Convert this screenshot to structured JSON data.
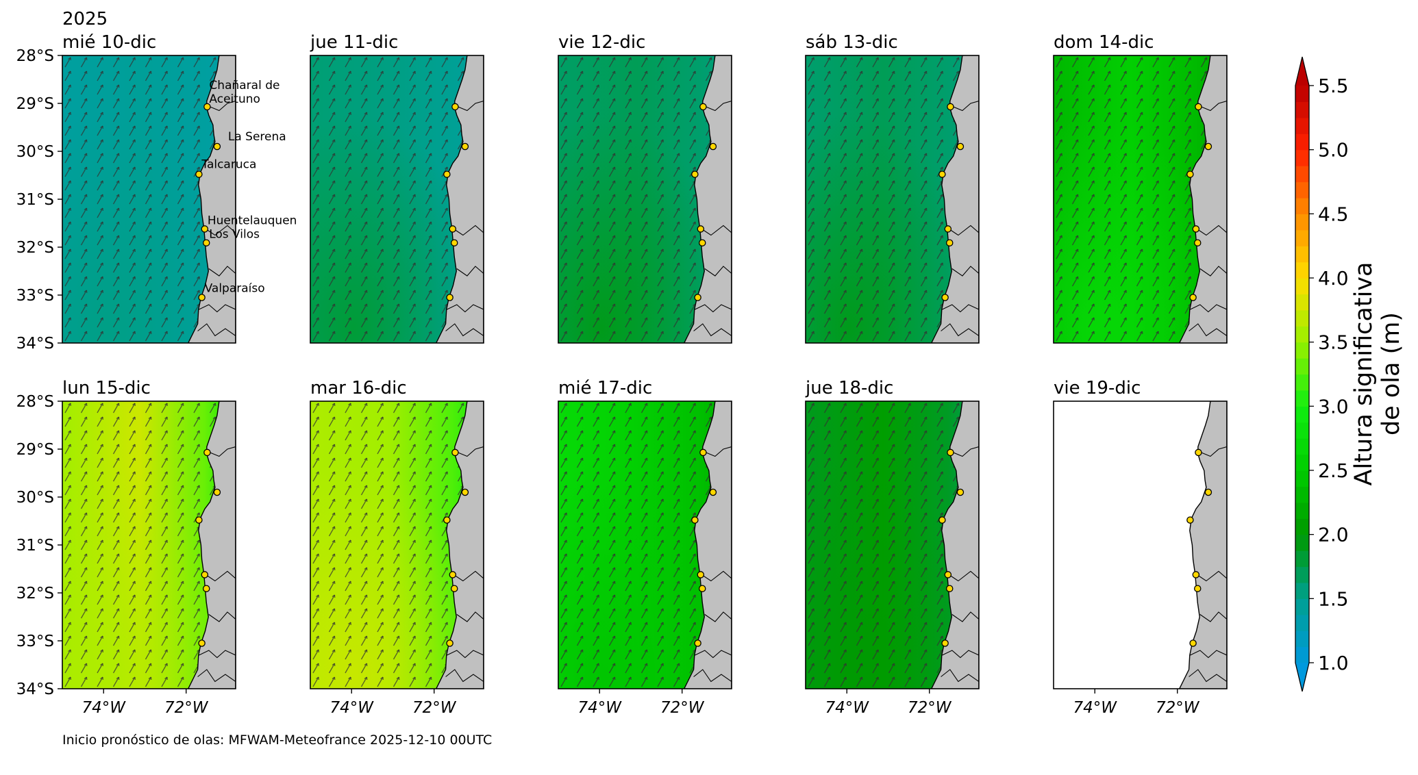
{
  "figure": {
    "year": "2025",
    "footer": "Inicio pronóstico de olas: MFWAM-Meteofrance 2025-12-10 00UTC"
  },
  "colors": {
    "land": "#c0c0c0",
    "station_fill": "#ffd700",
    "station_edge": "#000000",
    "arrow": "#333333"
  },
  "axes": {
    "lat_ticks": [
      "28°S",
      "29°S",
      "30°S",
      "31°S",
      "32°S",
      "33°S",
      "34°S"
    ],
    "lon_ticks": [
      "74°W",
      "72°W"
    ]
  },
  "stations": [
    {
      "name": "Chañaral de Aceituno",
      "lines": [
        "Chañaral de",
        "Aceituno"
      ],
      "lat": -29.07,
      "lon": -71.49
    },
    {
      "name": "La Serena",
      "lines": [
        "La Serena"
      ],
      "lat": -29.9,
      "lon": -71.25
    },
    {
      "name": "Talcaruca",
      "lines": [
        "Talcaruca"
      ],
      "lat": -30.48,
      "lon": -71.69
    },
    {
      "name": "Huentelauquen",
      "lines": [
        "Huentelauquen"
      ],
      "lat": -31.62,
      "lon": -71.55
    },
    {
      "name": "Los Vilos",
      "lines": [
        "Los Vilos"
      ],
      "lat": -31.91,
      "lon": -71.51
    },
    {
      "name": "Valparaíso",
      "lines": [
        "Valparaíso"
      ],
      "lat": -33.05,
      "lon": -71.62
    }
  ],
  "colorbar": {
    "label_line1": "Altura significativa",
    "label_line2": "de ola (m)",
    "min": 1.0,
    "max": 5.5,
    "ticks": [
      "1.0",
      "1.5",
      "2.0",
      "2.5",
      "3.0",
      "3.5",
      "4.0",
      "4.5",
      "5.0",
      "5.5"
    ],
    "stops": [
      {
        "v": 1.0,
        "color": "#0099dd"
      },
      {
        "v": 1.5,
        "color": "#00a090"
      },
      {
        "v": 2.0,
        "color": "#009900"
      },
      {
        "v": 2.5,
        "color": "#00cc00"
      },
      {
        "v": 3.0,
        "color": "#11ee11"
      },
      {
        "v": 3.5,
        "color": "#99f000"
      },
      {
        "v": 4.0,
        "color": "#ffdd00"
      },
      {
        "v": 4.5,
        "color": "#ff8c00"
      },
      {
        "v": 5.0,
        "color": "#ff2200"
      },
      {
        "v": 5.5,
        "color": "#bb0000"
      }
    ],
    "under_color": "#0099dd",
    "over_color": "#bb0000"
  },
  "panels": [
    {
      "title": "mié 10-dic",
      "near": 1.35,
      "mid": 1.45,
      "far": 1.4,
      "swell_south": 1.55,
      "stations_labeled": true
    },
    {
      "title": "jue 11-dic",
      "near": 1.4,
      "mid": 1.55,
      "far": 1.6,
      "swell_south": 1.85,
      "stations_labeled": false
    },
    {
      "title": "vie 12-dic",
      "near": 1.55,
      "mid": 1.7,
      "far": 1.65,
      "swell_south": 1.95,
      "stations_labeled": false
    },
    {
      "title": "sáb 13-dic",
      "near": 1.55,
      "mid": 1.7,
      "far": 1.62,
      "swell_south": 1.95,
      "stations_labeled": false
    },
    {
      "title": "dom 14-dic",
      "near": 2.1,
      "mid": 2.55,
      "far": 2.3,
      "swell_south": 2.7,
      "stations_labeled": false
    },
    {
      "title": "lun 15-dic",
      "near": 2.9,
      "mid": 3.75,
      "far": 3.55,
      "swell_south": 3.6,
      "stations_labeled": false
    },
    {
      "title": "mar 16-dic",
      "near": 2.9,
      "mid": 3.55,
      "far": 3.6,
      "swell_south": 3.75,
      "stations_labeled": false
    },
    {
      "title": "mié 17-dic",
      "near": 2.2,
      "mid": 2.55,
      "far": 2.7,
      "swell_south": 2.4,
      "stations_labeled": false
    },
    {
      "title": "jue 18-dic",
      "near": 1.7,
      "mid": 2.05,
      "far": 1.9,
      "swell_south": 2.0,
      "stations_labeled": false
    },
    {
      "title": "vie 19-dic",
      "near": null,
      "mid": null,
      "far": null,
      "swell_south": null,
      "stations_labeled": false
    }
  ]
}
